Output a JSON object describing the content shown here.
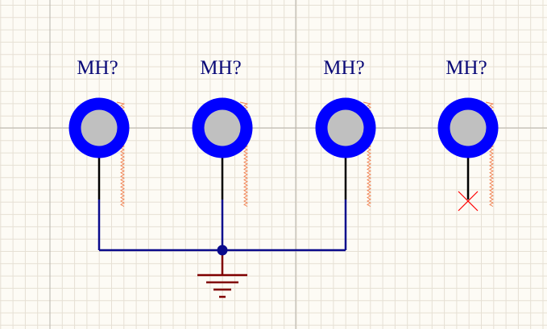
{
  "schematic": {
    "colors": {
      "background": "#fdfbf5",
      "grid_minor": "#e6e0d4",
      "grid_major": "#b8b3ab",
      "designator": "#0a0a78",
      "pad_ring": "#0000ff",
      "pad_hole": "#c0c0c0",
      "pin": "#000000",
      "wire": "#0a0a8c",
      "junction": "#0a0a8c",
      "power_symbol": "#800000",
      "hatch": "#f08050",
      "no_connect": "#ff0000"
    },
    "parts": [
      {
        "designator": "MH?",
        "connected": true
      },
      {
        "designator": "MH?",
        "connected": true
      },
      {
        "designator": "MH?",
        "connected": true
      },
      {
        "designator": "MH?",
        "connected": false
      }
    ],
    "icons": {
      "pad": "mounting-hole-pad-icon",
      "ground": "ground-symbol-icon",
      "no_connect": "no-connect-x-icon",
      "junction": "junction-dot-icon"
    }
  }
}
